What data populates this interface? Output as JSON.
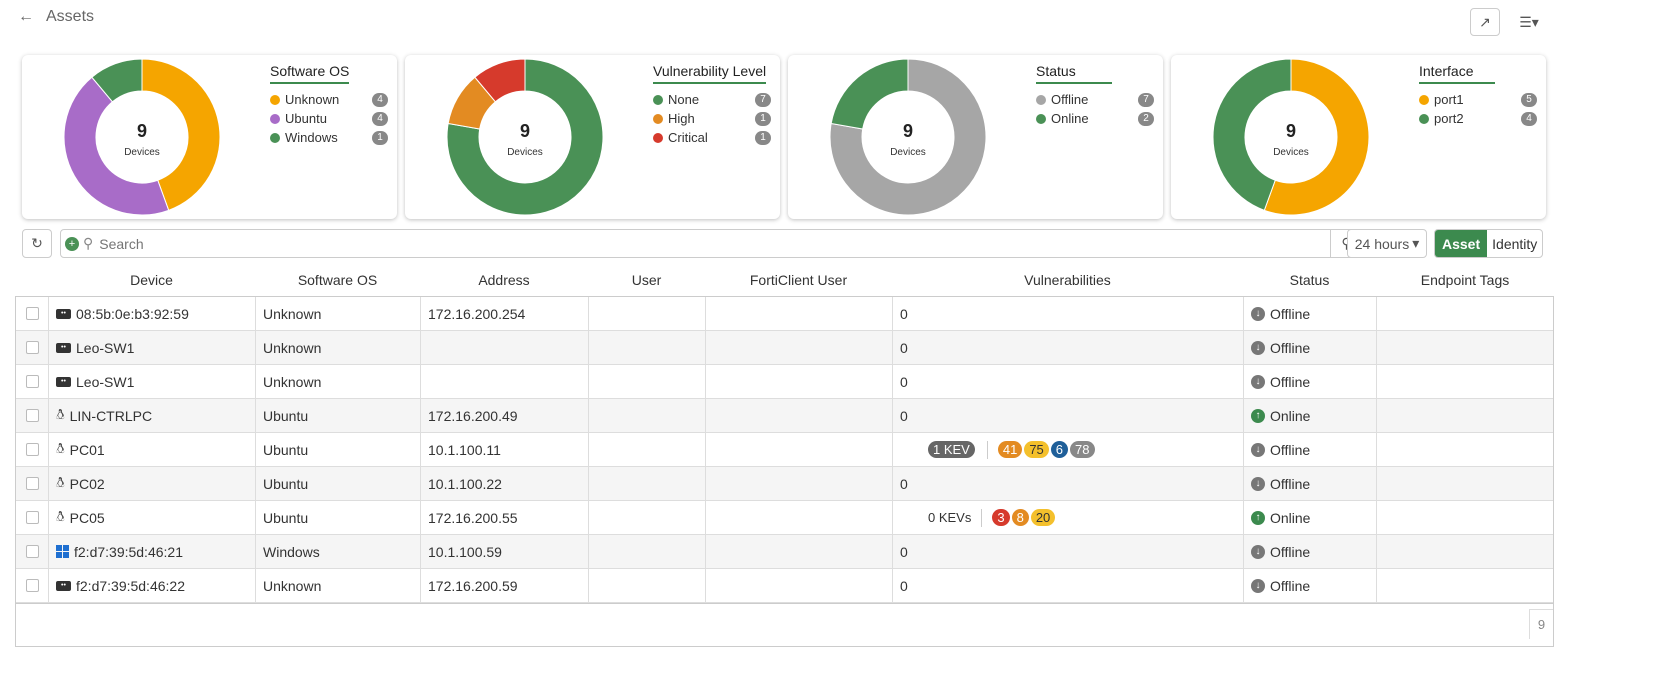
{
  "header": {
    "title": "Assets"
  },
  "cards": [
    {
      "title": "Software OS",
      "total": "9",
      "unit": "Devices",
      "items": [
        {
          "label": "Unknown",
          "count": 4,
          "color": "#f5a500"
        },
        {
          "label": "Ubuntu",
          "count": 4,
          "color": "#a86cc8"
        },
        {
          "label": "Windows",
          "count": 1,
          "color": "#4a9156"
        }
      ]
    },
    {
      "title": "Vulnerability Level",
      "total": "9",
      "unit": "Devices",
      "items": [
        {
          "label": "None",
          "count": 7,
          "color": "#4a9156"
        },
        {
          "label": "High",
          "count": 1,
          "color": "#e38b22"
        },
        {
          "label": "Critical",
          "count": 1,
          "color": "#d63a2c"
        }
      ]
    },
    {
      "title": "Status",
      "total": "9",
      "unit": "Devices",
      "items": [
        {
          "label": "Offline",
          "count": 7,
          "color": "#a6a6a6"
        },
        {
          "label": "Online",
          "count": 2,
          "color": "#4a9156"
        }
      ]
    },
    {
      "title": "Interface",
      "total": "9",
      "unit": "Devices",
      "items": [
        {
          "label": "port1",
          "count": 5,
          "color": "#f5a500"
        },
        {
          "label": "port2",
          "count": 4,
          "color": "#4a9156"
        }
      ]
    }
  ],
  "toolbar": {
    "search_placeholder": "Search",
    "time_range": "24 hours",
    "view_asset": "Asset",
    "view_identity": "Identity"
  },
  "columns": [
    "Device",
    "Software OS",
    "Address",
    "User",
    "FortiClient User",
    "Vulnerabilities",
    "Status",
    "Endpoint Tags"
  ],
  "rows": [
    {
      "icon": "switch",
      "device": "08:5b:0e:b3:92:59",
      "os": "Unknown",
      "address": "172.16.200.254",
      "vuln": "0",
      "status": "Offline"
    },
    {
      "icon": "switch",
      "device": "Leo-SW1",
      "os": "Unknown",
      "address": "",
      "vuln": "0",
      "status": "Offline"
    },
    {
      "icon": "switch",
      "device": "Leo-SW1",
      "os": "Unknown",
      "address": "",
      "vuln": "0",
      "status": "Offline"
    },
    {
      "icon": "linux",
      "device": "LIN-CTRLPC",
      "os": "Ubuntu",
      "address": "172.16.200.49",
      "vuln": "0",
      "status": "Online"
    },
    {
      "icon": "linux",
      "device": "PC01",
      "os": "Ubuntu",
      "address": "10.1.100.11",
      "kev": "1 KEV",
      "badges": [
        {
          "v": "41",
          "c": "#e38b22"
        },
        {
          "v": "75",
          "c": "#f4c02c"
        },
        {
          "v": "6",
          "c": "#1f5f99"
        },
        {
          "v": "78",
          "c": "#888"
        }
      ],
      "status": "Offline"
    },
    {
      "icon": "linux",
      "device": "PC02",
      "os": "Ubuntu",
      "address": "10.1.100.22",
      "vuln": "0",
      "status": "Offline"
    },
    {
      "icon": "linux",
      "device": "PC05",
      "os": "Ubuntu",
      "address": "172.16.200.55",
      "kev": "0  KEVs",
      "badges": [
        {
          "v": "3",
          "c": "#d63a2c"
        },
        {
          "v": "8",
          "c": "#e38b22"
        },
        {
          "v": "20",
          "c": "#f4c02c"
        }
      ],
      "status": "Online"
    },
    {
      "icon": "windows",
      "device": "f2:d7:39:5d:46:21",
      "os": "Windows",
      "address": "10.1.100.59",
      "vuln": "0",
      "status": "Offline"
    },
    {
      "icon": "switch",
      "device": "f2:d7:39:5d:46:22",
      "os": "Unknown",
      "address": "172.16.200.59",
      "vuln": "0",
      "status": "Offline"
    }
  ],
  "footer": {
    "count": "9"
  }
}
